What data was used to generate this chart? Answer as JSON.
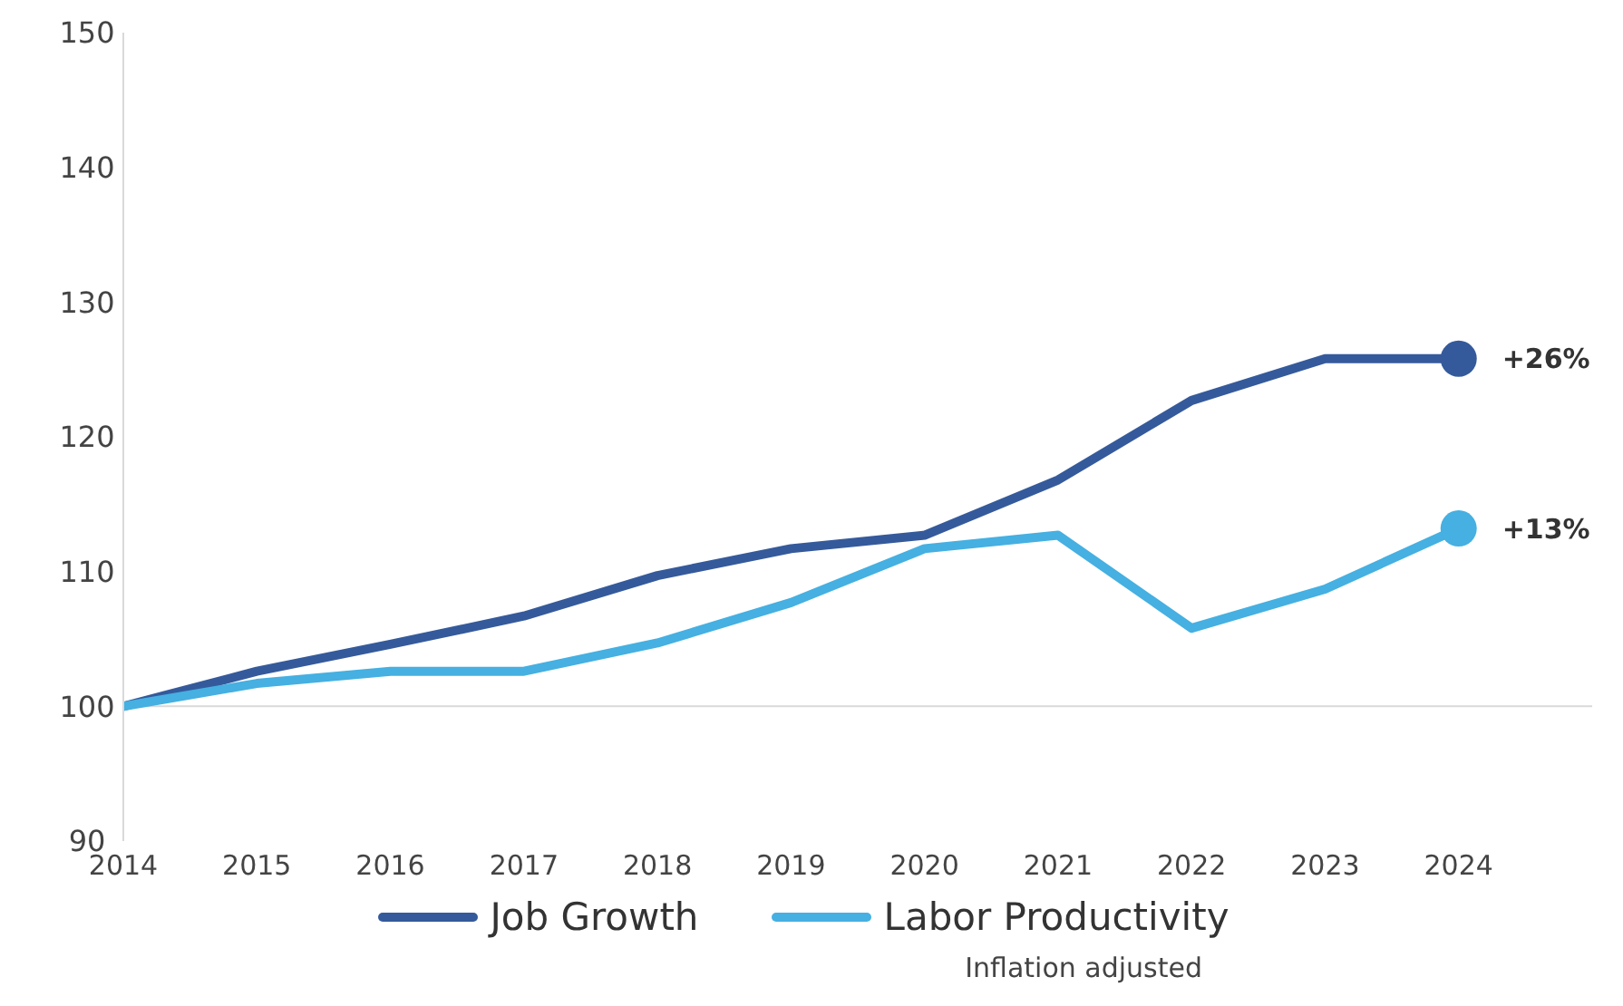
{
  "chart_data": {
    "type": "line",
    "x": [
      2014,
      2015,
      2016,
      2017,
      2018,
      2019,
      2020,
      2021,
      2022,
      2023,
      2024
    ],
    "series": [
      {
        "name": "Job Growth",
        "color": "#355a9b",
        "values": [
          100,
          102.6,
          104.6,
          106.7,
          109.7,
          111.7,
          112.7,
          116.8,
          122.7,
          125.8,
          125.8
        ]
      },
      {
        "name": "Labor Productivity",
        "color": "#45b0e1",
        "values": [
          100,
          101.7,
          102.6,
          102.6,
          104.7,
          107.7,
          111.7,
          112.7,
          105.8,
          108.7,
          113.2
        ]
      }
    ],
    "xlim": [
      2014,
      2025
    ],
    "xticks": [
      2014,
      2015,
      2016,
      2017,
      2018,
      2019,
      2020,
      2021,
      2022,
      2023,
      2024
    ],
    "ylim": [
      90,
      150
    ],
    "yticks": [
      90,
      100,
      110,
      120,
      130,
      140,
      150
    ],
    "grid": false,
    "legend": "bottom",
    "marker": "none",
    "line_style": "solid",
    "ref_lines": [
      {
        "axis": "y",
        "value": 100,
        "color": "#d9d9d9"
      }
    ],
    "annotations": [
      {
        "text": "+26%",
        "x": 2024,
        "y": 125.8
      },
      {
        "text": "+13%",
        "x": 2024,
        "y": 113.2
      },
      "Inflation adjusted"
    ]
  }
}
